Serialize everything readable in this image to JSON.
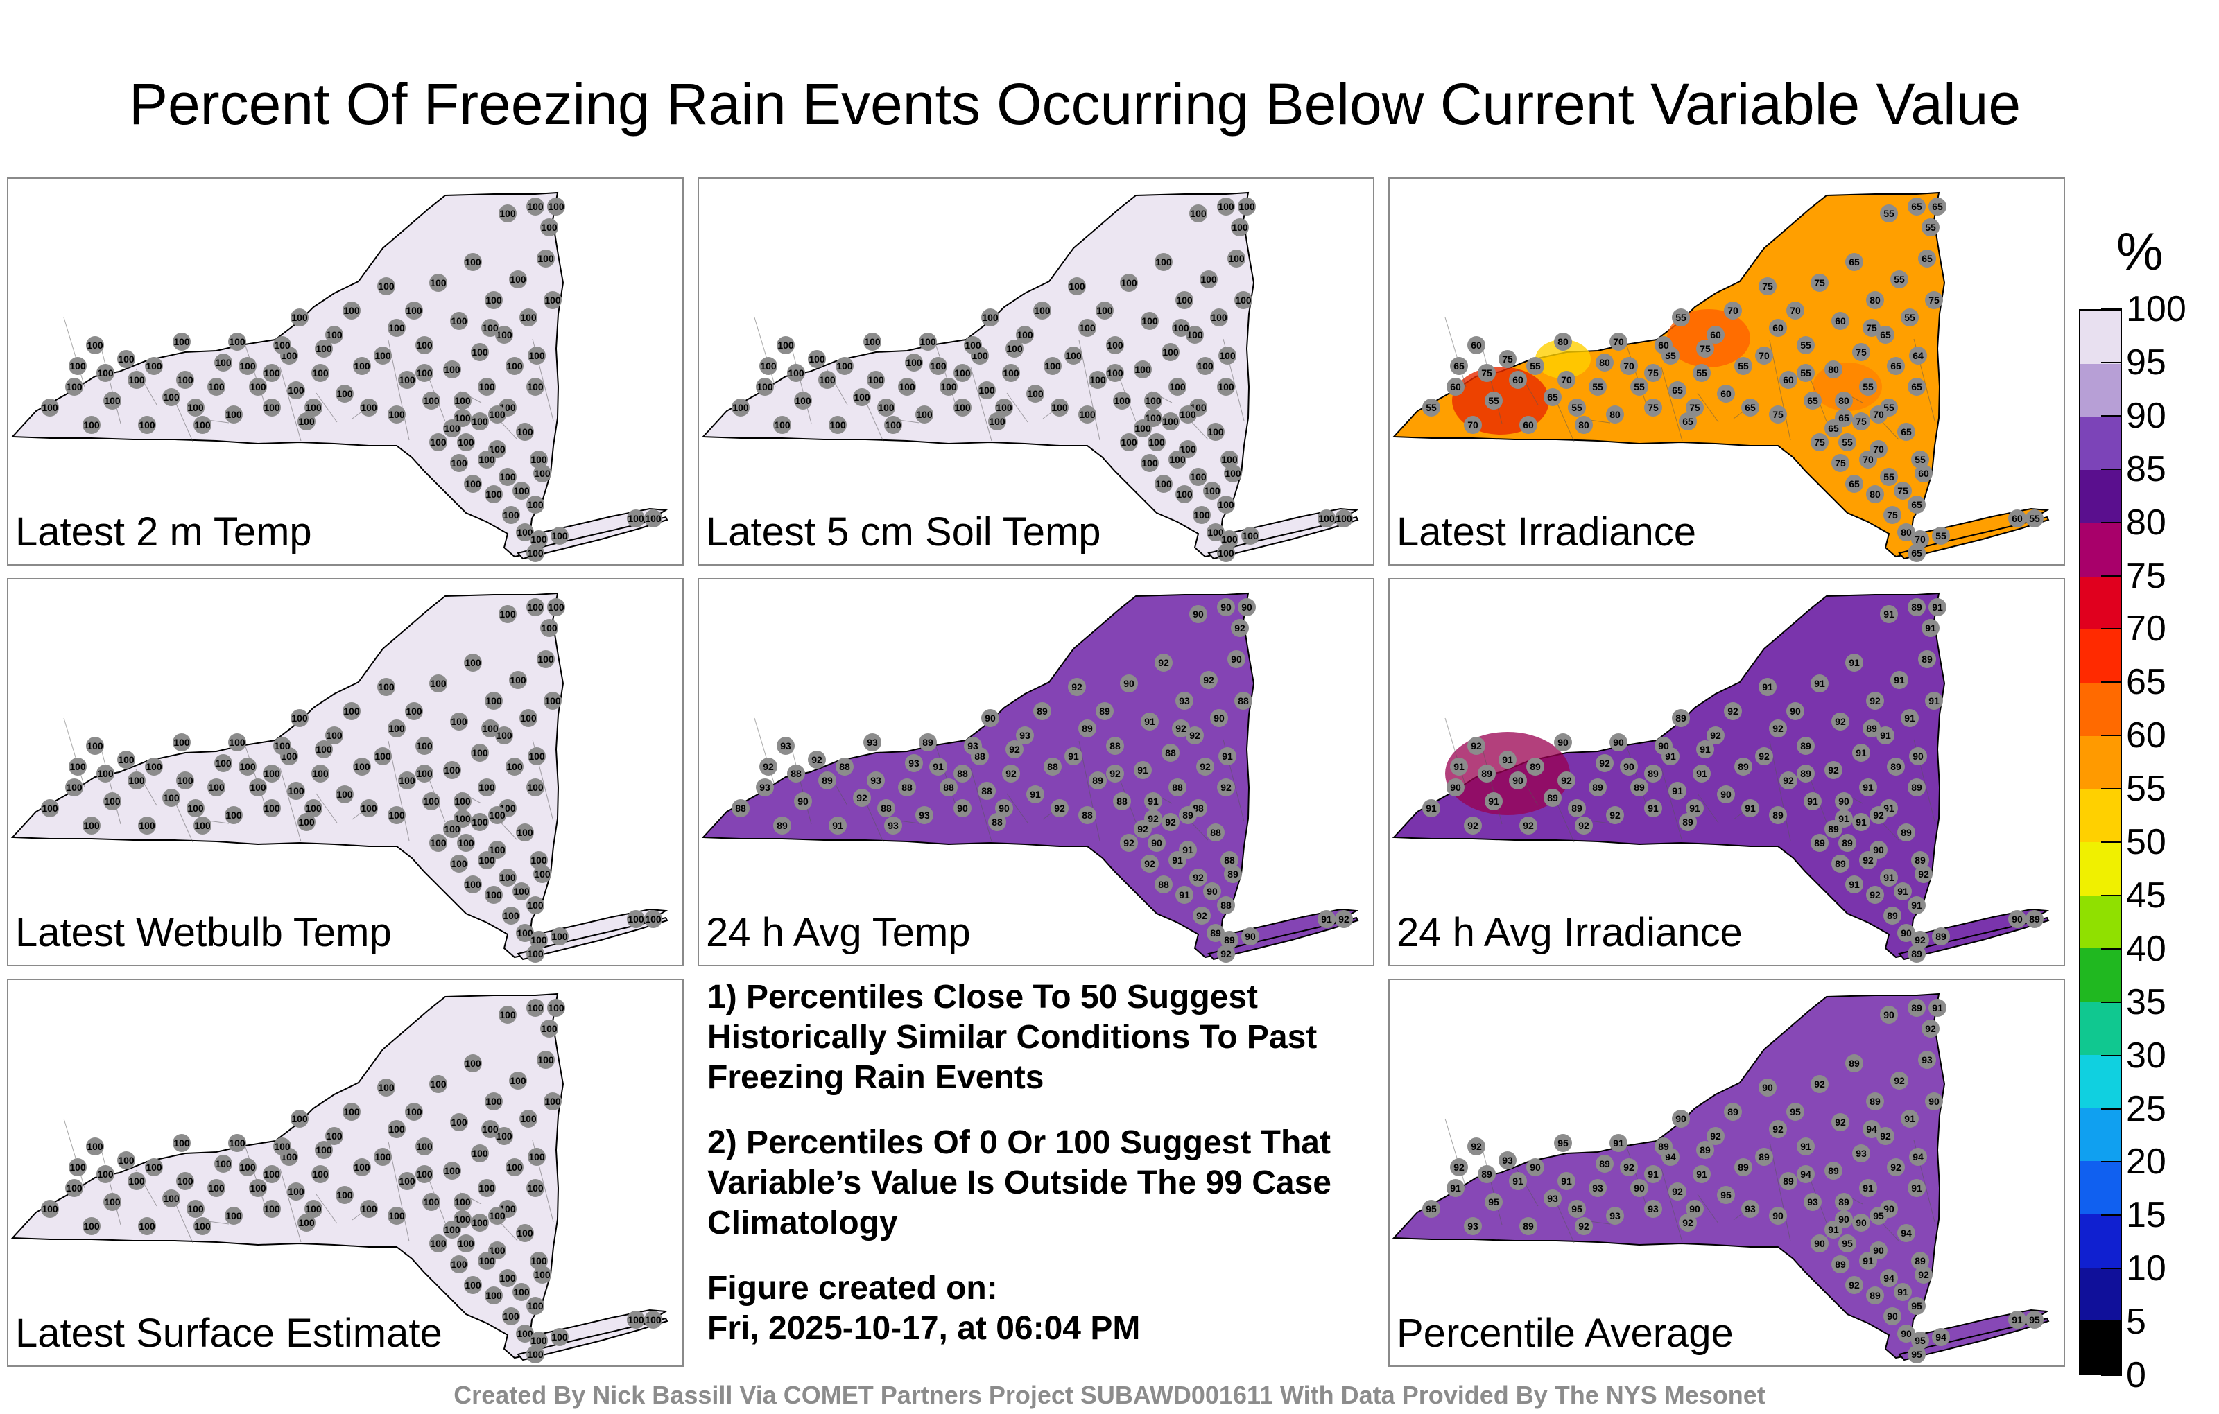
{
  "title": "Percent Of Freezing Rain Events Occurring Below Current Variable Value",
  "panels": [
    {
      "id": "p1",
      "label": "Latest 2 m Temp",
      "field": "uniform",
      "value": 100
    },
    {
      "id": "p2",
      "label": "Latest 5 cm Soil Temp",
      "field": "uniform",
      "value": 100
    },
    {
      "id": "p3",
      "label": "Latest Irradiance",
      "field": "irradiance",
      "value": 65
    },
    {
      "id": "p4",
      "label": "Latest Wetbulb Temp",
      "field": "uniform",
      "value": 100
    },
    {
      "id": "p5",
      "label": "24 h Avg Temp",
      "field": "avgtemp",
      "value": 92
    },
    {
      "id": "p6",
      "label": "24 h Avg Irradiance",
      "field": "avgirr",
      "value": 92
    },
    {
      "id": "p7",
      "label": "Latest Surface Estimate",
      "field": "uniform",
      "value": 100
    },
    {
      "id": "p9",
      "label": "Percentile Average",
      "field": "average",
      "value": 93
    }
  ],
  "notes": {
    "note1": "1) Percentiles Close To 50 Suggest Historically Similar Conditions To Past Freezing Rain Events",
    "note2": "2) Percentiles Of 0 Or 100 Suggest That Variable’s Value Is Outside The 99 Case Climatology",
    "created_label": "Figure created on:",
    "created_value": "Fri, 2025-10-17, at 06:04 PM"
  },
  "colorbar": {
    "unit": "%",
    "ticks": [
      "100",
      "95",
      "90",
      "85",
      "80",
      "75",
      "70",
      "65",
      "60",
      "55",
      "50",
      "45",
      "40",
      "35",
      "30",
      "25",
      "20",
      "15",
      "10",
      "5",
      "0"
    ],
    "colors": [
      "#e8e0f0",
      "#b79fd6",
      "#7c44b8",
      "#5a0f8e",
      "#a8006a",
      "#e0001e",
      "#ff2a00",
      "#ff6a00",
      "#ff9a00",
      "#ffd000",
      "#f0f000",
      "#90e000",
      "#20b820",
      "#10c890",
      "#10d0e0",
      "#10a0f0",
      "#1060f0",
      "#1020d0",
      "#10109a",
      "#000000"
    ]
  },
  "credit": "Created By Nick Bassill Via COMET Partners Project SUBAWD001611 With Data Provided By The NYS Mesonet"
}
